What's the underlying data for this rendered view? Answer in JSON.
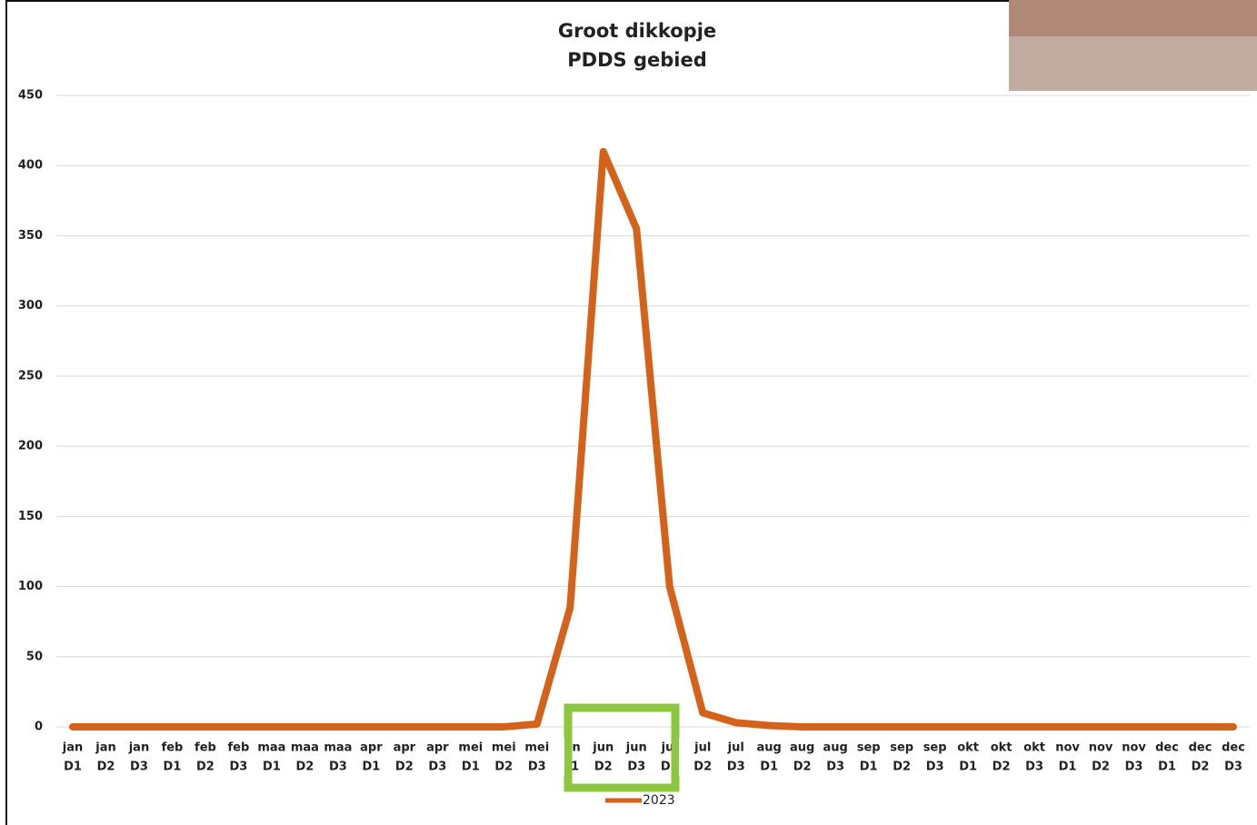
{
  "chart_data": {
    "type": "line",
    "title": "Groot dikkopje",
    "subtitle": "PDDS gebied",
    "categories": [
      [
        "jan",
        "D1"
      ],
      [
        "jan",
        "D2"
      ],
      [
        "jan",
        "D3"
      ],
      [
        "feb",
        "D1"
      ],
      [
        "feb",
        "D2"
      ],
      [
        "feb",
        "D3"
      ],
      [
        "maa",
        "D1"
      ],
      [
        "maa",
        "D2"
      ],
      [
        "maa",
        "D3"
      ],
      [
        "apr",
        "D1"
      ],
      [
        "apr",
        "D2"
      ],
      [
        "apr",
        "D3"
      ],
      [
        "mei",
        "D1"
      ],
      [
        "mei",
        "D2"
      ],
      [
        "mei",
        "D3"
      ],
      [
        "jun",
        "D1"
      ],
      [
        "jun",
        "D2"
      ],
      [
        "jun",
        "D3"
      ],
      [
        "jul",
        "D1"
      ],
      [
        "jul",
        "D2"
      ],
      [
        "jul",
        "D3"
      ],
      [
        "aug",
        "D1"
      ],
      [
        "aug",
        "D2"
      ],
      [
        "aug",
        "D3"
      ],
      [
        "sep",
        "D1"
      ],
      [
        "sep",
        "D2"
      ],
      [
        "sep",
        "D3"
      ],
      [
        "okt",
        "D1"
      ],
      [
        "okt",
        "D2"
      ],
      [
        "okt",
        "D3"
      ],
      [
        "nov",
        "D1"
      ],
      [
        "nov",
        "D2"
      ],
      [
        "nov",
        "D3"
      ],
      [
        "dec",
        "D1"
      ],
      [
        "dec",
        "D2"
      ],
      [
        "dec",
        "D3"
      ]
    ],
    "series": [
      {
        "name": "2023",
        "color": "#d4621a",
        "values": [
          0,
          0,
          0,
          0,
          0,
          0,
          0,
          0,
          0,
          0,
          0,
          0,
          0,
          0,
          2,
          85,
          410,
          355,
          100,
          10,
          3,
          1,
          0,
          0,
          0,
          0,
          0,
          0,
          0,
          0,
          0,
          0,
          0,
          0,
          0,
          0
        ]
      }
    ],
    "ylim": [
      0,
      450
    ],
    "yticks": [
      0,
      50,
      100,
      150,
      200,
      250,
      300,
      350,
      400,
      450
    ],
    "grid": true,
    "legend": "bottom"
  }
}
